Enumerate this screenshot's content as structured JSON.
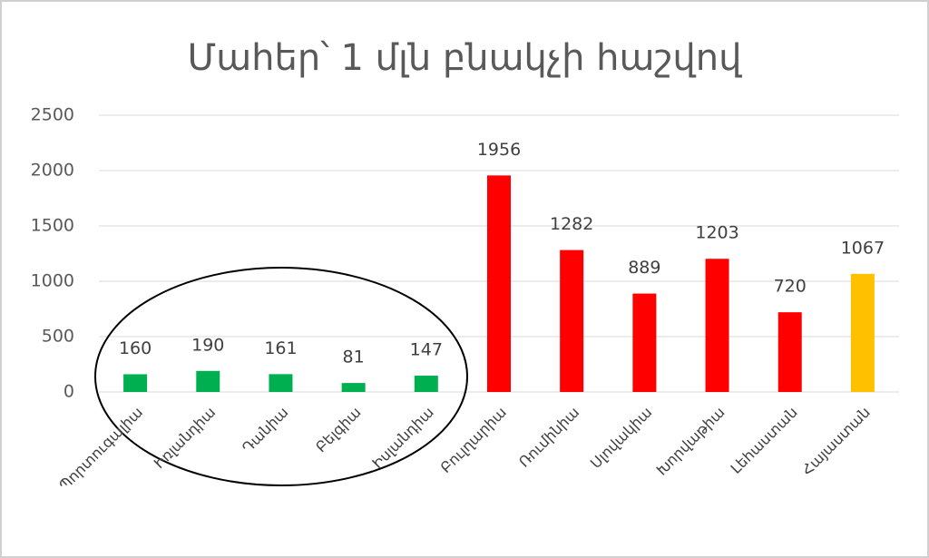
{
  "chart_data": {
    "type": "bar",
    "title": "Մահեր՝ 1 մլն բնակչի հաշվով",
    "categories": [
      "Պորտուգալիա",
      "Իռլանդիա",
      "Դանիա",
      "Բելգիա",
      "Իսլանդիա",
      "Բուլղարիա",
      "Ռումինիա",
      "Սլովակիա",
      "Խորվաթիա",
      "Լեհաստան",
      "Հայաստան"
    ],
    "values": [
      160,
      190,
      161,
      81,
      147,
      1956,
      1282,
      889,
      1203,
      720,
      1067
    ],
    "colors": [
      "#00b050",
      "#00b050",
      "#00b050",
      "#00b050",
      "#00b050",
      "#ff0000",
      "#ff0000",
      "#ff0000",
      "#ff0000",
      "#ff0000",
      "#ffc000"
    ],
    "ylim": [
      0,
      2500
    ],
    "yticks": [
      0,
      500,
      1000,
      1500,
      2000,
      2500
    ],
    "grid": true
  }
}
